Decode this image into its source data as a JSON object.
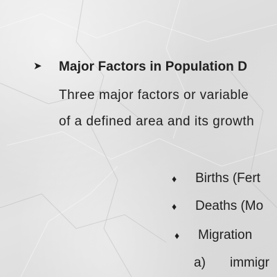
{
  "slide": {
    "heading": {
      "bullet_icon": "arrow-bullet-icon",
      "text": "Major Factors in Population D"
    },
    "paragraph": {
      "line1": "Three major factors or variable",
      "line2": "of a defined area and its growth"
    },
    "factors": [
      {
        "bullet_icon": "diamond-bullet-icon",
        "label": "Births  (Fert"
      },
      {
        "bullet_icon": "diamond-bullet-icon",
        "label": "Deaths (Mo"
      },
      {
        "bullet_icon": "diamond-bullet-icon",
        "label": "Migration"
      }
    ],
    "sub_item": {
      "marker": "a)",
      "text": "immigr"
    }
  },
  "colors": {
    "text": "#1f1f1f",
    "paper": "#e0e0e0"
  }
}
